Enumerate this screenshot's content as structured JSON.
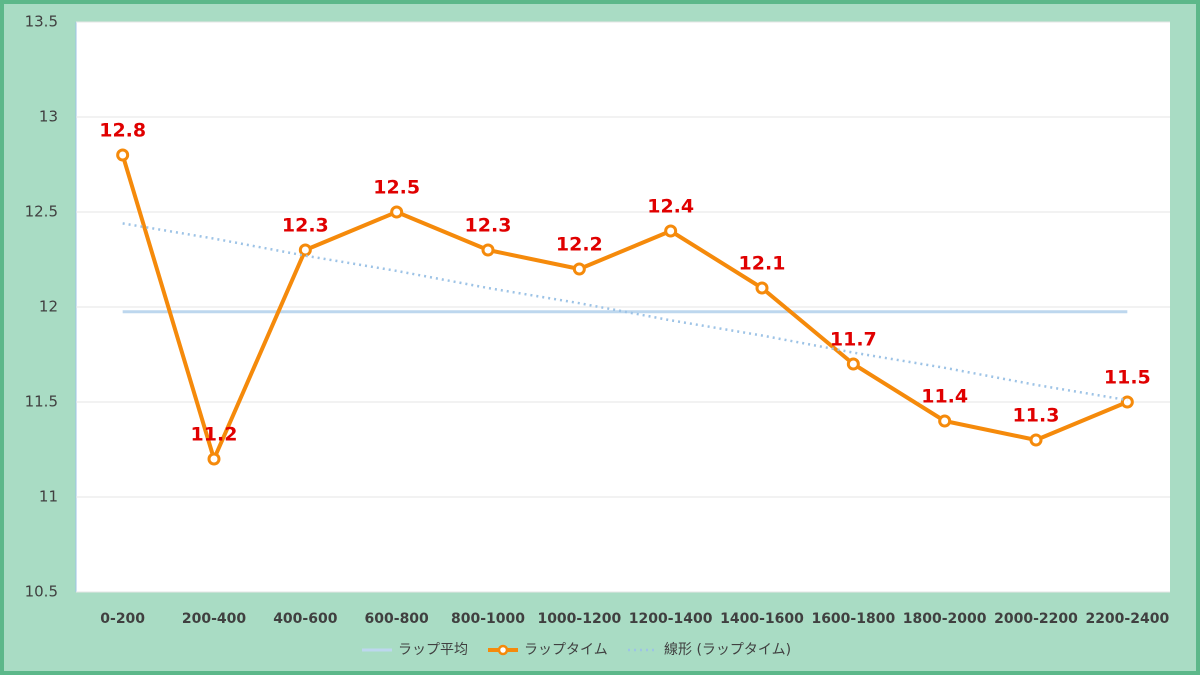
{
  "chart_data": {
    "type": "line",
    "categories": [
      "0-200",
      "200-400",
      "400-600",
      "600-800",
      "800-1000",
      "1000-1200",
      "1200-1400",
      "1400-1600",
      "1600-1800",
      "1800-2000",
      "2000-2200",
      "2200-2400"
    ],
    "series": [
      {
        "name": "ラップ平均",
        "color": "#bdd7ee",
        "style": "solid",
        "values": [
          11.975,
          11.975,
          11.975,
          11.975,
          11.975,
          11.975,
          11.975,
          11.975,
          11.975,
          11.975,
          11.975,
          11.975
        ]
      },
      {
        "name": "ラップタイム",
        "color": "#f58a0b",
        "style": "marker",
        "values": [
          12.8,
          11.2,
          12.3,
          12.5,
          12.3,
          12.2,
          12.4,
          12.1,
          11.7,
          11.4,
          11.3,
          11.5
        ],
        "data_labels": true
      },
      {
        "name": "線形 (ラップタイム)",
        "color": "#9dc3e6",
        "style": "dotted",
        "values": [
          12.44,
          12.36,
          12.27,
          12.19,
          12.1,
          12.02,
          11.93,
          11.85,
          11.76,
          11.68,
          11.59,
          11.51
        ]
      }
    ],
    "ylim": [
      10.5,
      13.5
    ],
    "yticks": [
      10.5,
      11,
      11.5,
      12,
      12.5,
      13,
      13.5
    ],
    "grid": true,
    "legend": "bottom"
  }
}
